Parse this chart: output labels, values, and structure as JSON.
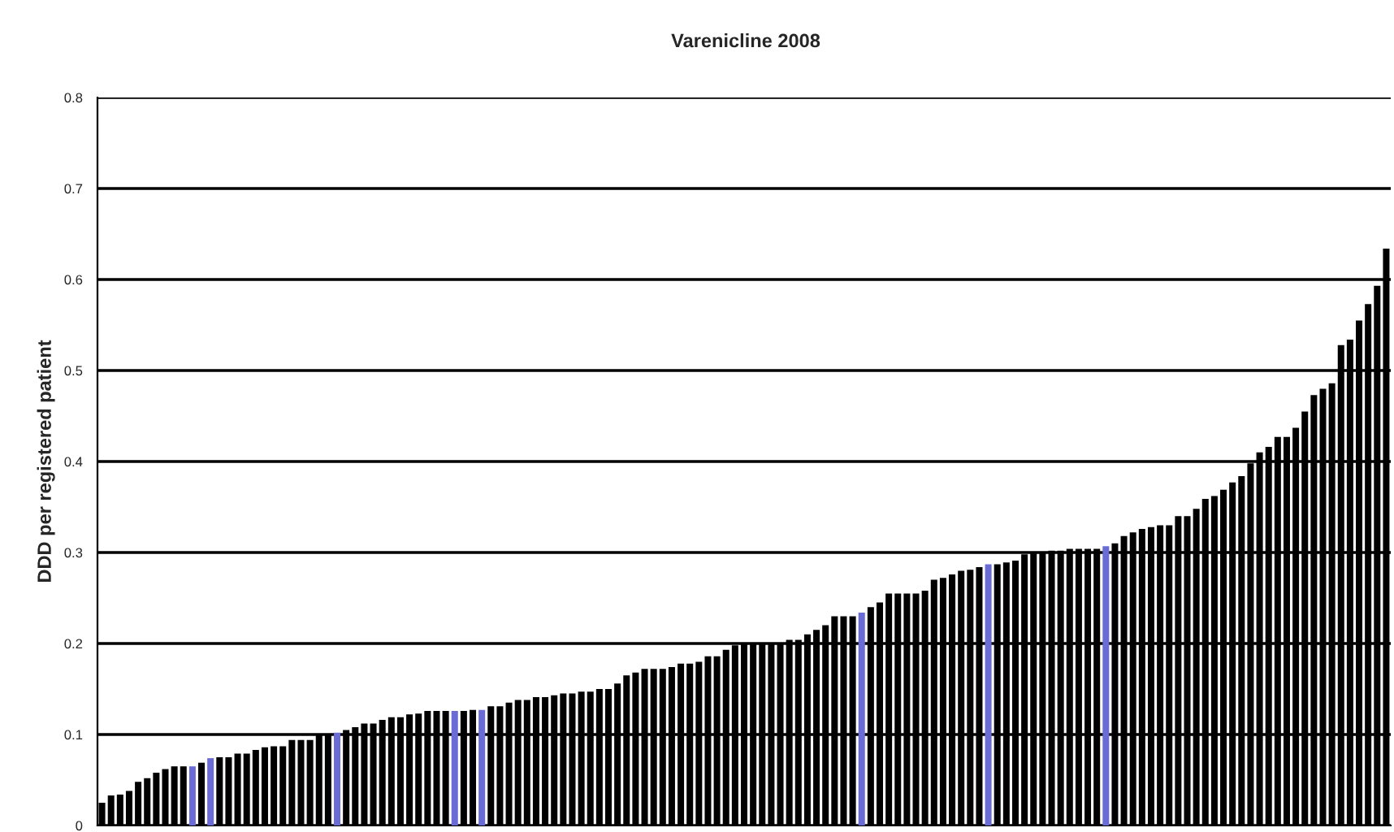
{
  "chart_data": {
    "type": "bar",
    "title": "Varenicline 2008",
    "ylabel": "DDD per registered patient",
    "categories": [
      null,
      null,
      null,
      null,
      null,
      null,
      null,
      null,
      null,
      null,
      null,
      null,
      null,
      null,
      null,
      null,
      null,
      null,
      null,
      null,
      null,
      null,
      null,
      null,
      null,
      null,
      null,
      null,
      null,
      null,
      null,
      null,
      null,
      null,
      null,
      null,
      null,
      null,
      null,
      null,
      null,
      null,
      null,
      null,
      null,
      null,
      null,
      null,
      null,
      null,
      null,
      null,
      null,
      null,
      null,
      null,
      null,
      null,
      null,
      null,
      null,
      null,
      null,
      null,
      null,
      null,
      null,
      null,
      null,
      null,
      null,
      null,
      null,
      null,
      null,
      null,
      null,
      null,
      null,
      null,
      null,
      null,
      null,
      null,
      null,
      null,
      null,
      null,
      null,
      null,
      null,
      null,
      null,
      null,
      null,
      null,
      null,
      null,
      null,
      null,
      null,
      null,
      null,
      null,
      null,
      null,
      null,
      null,
      null,
      null,
      null,
      null,
      null,
      null,
      null,
      null,
      null,
      null,
      null,
      null,
      null,
      null,
      null,
      null,
      null,
      null,
      null,
      null,
      null,
      null,
      null,
      null,
      null,
      null,
      null,
      null,
      null,
      null,
      null,
      null,
      null,
      null,
      null
    ],
    "values": [
      0.025,
      0.033,
      0.034,
      0.038,
      0.048,
      0.052,
      0.058,
      0.062,
      0.065,
      0.065,
      0.065,
      0.069,
      0.074,
      0.075,
      0.075,
      0.079,
      0.079,
      0.083,
      0.086,
      0.087,
      0.087,
      0.094,
      0.094,
      0.094,
      0.1,
      0.1,
      0.102,
      0.105,
      0.108,
      0.112,
      0.112,
      0.116,
      0.119,
      0.119,
      0.122,
      0.123,
      0.126,
      0.126,
      0.126,
      0.126,
      0.126,
      0.127,
      0.127,
      0.131,
      0.131,
      0.135,
      0.138,
      0.138,
      0.141,
      0.141,
      0.143,
      0.145,
      0.145,
      0.147,
      0.147,
      0.15,
      0.15,
      0.156,
      0.165,
      0.168,
      0.172,
      0.172,
      0.172,
      0.174,
      0.178,
      0.178,
      0.18,
      0.186,
      0.186,
      0.193,
      0.198,
      0.2,
      0.2,
      0.2,
      0.2,
      0.2,
      0.204,
      0.204,
      0.21,
      0.215,
      0.22,
      0.23,
      0.23,
      0.23,
      0.234,
      0.24,
      0.245,
      0.255,
      0.255,
      0.255,
      0.255,
      0.258,
      0.27,
      0.272,
      0.276,
      0.28,
      0.281,
      0.284,
      0.287,
      0.287,
      0.289,
      0.291,
      0.298,
      0.3,
      0.3,
      0.302,
      0.302,
      0.304,
      0.304,
      0.304,
      0.304,
      0.307,
      0.31,
      0.318,
      0.322,
      0.326,
      0.328,
      0.33,
      0.33,
      0.34,
      0.34,
      0.348,
      0.359,
      0.362,
      0.369,
      0.377,
      0.384,
      0.398,
      0.41,
      0.416,
      0.427,
      0.427,
      0.437,
      0.455,
      0.473,
      0.48,
      0.486,
      0.528,
      0.534,
      0.555,
      0.573,
      0.593,
      0.634
    ],
    "colors": [
      "#000000",
      "#000000",
      "#000000",
      "#000000",
      "#000000",
      "#000000",
      "#000000",
      "#000000",
      "#000000",
      "#000000",
      "#6b6bd6",
      "#000000",
      "#6b6bd6",
      "#000000",
      "#000000",
      "#000000",
      "#000000",
      "#000000",
      "#000000",
      "#000000",
      "#000000",
      "#000000",
      "#000000",
      "#000000",
      "#000000",
      "#000000",
      "#6b6bd6",
      "#000000",
      "#000000",
      "#000000",
      "#000000",
      "#000000",
      "#000000",
      "#000000",
      "#000000",
      "#000000",
      "#000000",
      "#000000",
      "#000000",
      "#6b6bd6",
      "#000000",
      "#000000",
      "#6b6bd6",
      "#000000",
      "#000000",
      "#000000",
      "#000000",
      "#000000",
      "#000000",
      "#000000",
      "#000000",
      "#000000",
      "#000000",
      "#000000",
      "#000000",
      "#000000",
      "#000000",
      "#000000",
      "#000000",
      "#000000",
      "#000000",
      "#000000",
      "#000000",
      "#000000",
      "#000000",
      "#000000",
      "#000000",
      "#000000",
      "#000000",
      "#000000",
      "#000000",
      "#000000",
      "#000000",
      "#000000",
      "#000000",
      "#000000",
      "#000000",
      "#000000",
      "#000000",
      "#000000",
      "#000000",
      "#000000",
      "#000000",
      "#000000",
      "#6b6bd6",
      "#000000",
      "#000000",
      "#000000",
      "#000000",
      "#000000",
      "#000000",
      "#000000",
      "#000000",
      "#000000",
      "#000000",
      "#000000",
      "#000000",
      "#000000",
      "#6b6bd6",
      "#000000",
      "#000000",
      "#000000",
      "#000000",
      "#000000",
      "#000000",
      "#000000",
      "#000000",
      "#000000",
      "#000000",
      "#000000",
      "#000000",
      "#6b6bd6",
      "#000000",
      "#000000",
      "#000000",
      "#000000",
      "#000000",
      "#000000",
      "#000000",
      "#000000",
      "#000000",
      "#000000",
      "#000000",
      "#000000",
      "#000000",
      "#000000",
      "#000000",
      "#000000",
      "#000000",
      "#000000",
      "#000000",
      "#000000",
      "#000000",
      "#000000",
      "#000000",
      "#000000",
      "#000000",
      "#000000",
      "#000000",
      "#000000",
      "#000000",
      "#000000",
      "#000000"
    ],
    "ylim": [
      0,
      0.8
    ],
    "yticks": [
      0,
      0.1,
      0.2,
      0.3,
      0.4,
      0.5,
      0.6,
      0.7,
      0.8
    ],
    "grid": "y"
  }
}
